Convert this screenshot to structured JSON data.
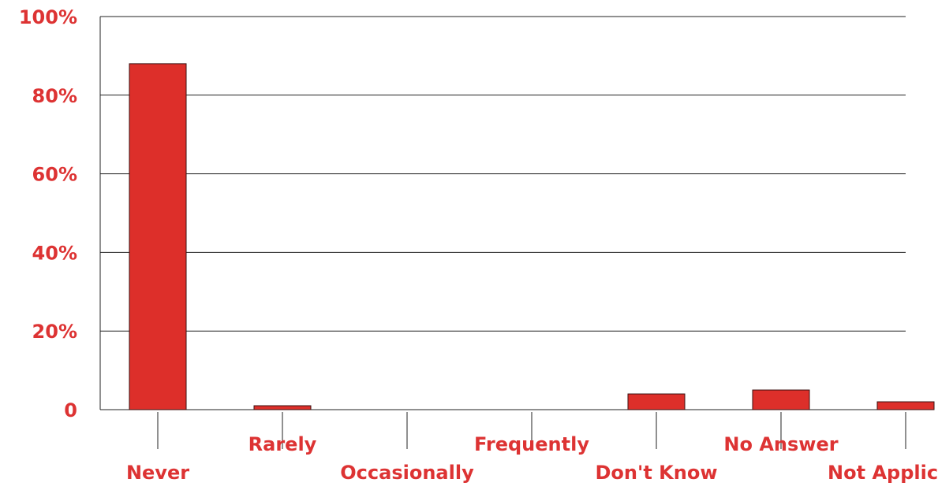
{
  "chart_data": {
    "type": "bar",
    "categories": [
      "Never",
      "Rarely",
      "Occasionally",
      "Frequently",
      "Don't Know",
      "No Answer",
      "Not Applicable"
    ],
    "values": [
      88,
      1,
      0,
      0,
      4,
      5,
      2
    ],
    "ylim": [
      0,
      100
    ],
    "y_ticks": [
      0,
      20,
      40,
      60,
      80,
      100
    ],
    "y_tick_labels": [
      "0",
      "20%",
      "40%",
      "60%",
      "80%",
      "100%"
    ],
    "grid": true,
    "legend": "none",
    "colors": {
      "bar_fill": "#dd2f2a",
      "bar_stroke": "#3a1010",
      "label_text": "#dd3333",
      "axis_line": "#222222"
    }
  }
}
